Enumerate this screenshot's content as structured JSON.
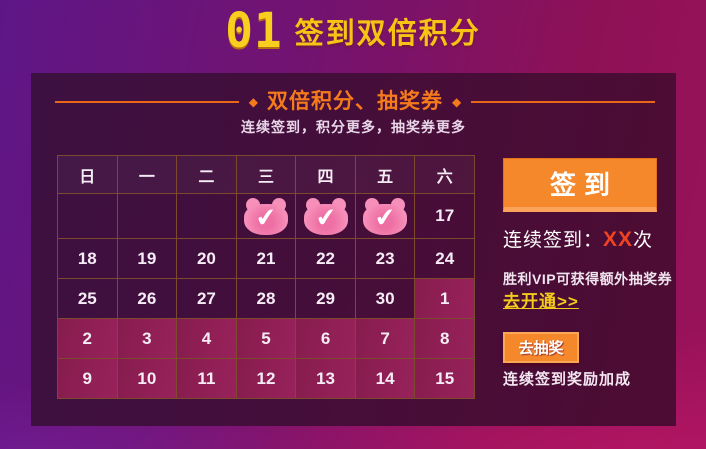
{
  "title": {
    "number": "01",
    "text": "签到双倍积分"
  },
  "section": {
    "bullet": "◆",
    "header": "双倍积分、抽奖券",
    "subtitle": "连续签到，积分更多，抽奖券更多"
  },
  "calendar": {
    "weekdays": [
      "日",
      "一",
      "二",
      "三",
      "四",
      "五",
      "六"
    ],
    "rows": [
      [
        {
          "t": "empty"
        },
        {
          "t": "empty"
        },
        {
          "t": "empty"
        },
        {
          "t": "bear"
        },
        {
          "t": "bear"
        },
        {
          "t": "bear"
        },
        {
          "t": "day",
          "v": "17"
        }
      ],
      [
        {
          "t": "day",
          "v": "18"
        },
        {
          "t": "day",
          "v": "19"
        },
        {
          "t": "day",
          "v": "20"
        },
        {
          "t": "day",
          "v": "21"
        },
        {
          "t": "day",
          "v": "22"
        },
        {
          "t": "day",
          "v": "23"
        },
        {
          "t": "day",
          "v": "24"
        }
      ],
      [
        {
          "t": "day",
          "v": "25"
        },
        {
          "t": "day",
          "v": "26"
        },
        {
          "t": "day",
          "v": "27"
        },
        {
          "t": "day",
          "v": "28"
        },
        {
          "t": "day",
          "v": "29"
        },
        {
          "t": "day",
          "v": "30"
        },
        {
          "t": "day",
          "v": "1",
          "hl": true
        }
      ],
      [
        {
          "t": "day",
          "v": "2",
          "hl": true
        },
        {
          "t": "day",
          "v": "3",
          "hl": true
        },
        {
          "t": "day",
          "v": "4",
          "hl": true
        },
        {
          "t": "day",
          "v": "5",
          "hl": true
        },
        {
          "t": "day",
          "v": "6",
          "hl": true
        },
        {
          "t": "day",
          "v": "7",
          "hl": true
        },
        {
          "t": "day",
          "v": "8",
          "hl": true
        }
      ],
      [
        {
          "t": "day",
          "v": "9",
          "hl": true
        },
        {
          "t": "day",
          "v": "10",
          "hl": true
        },
        {
          "t": "day",
          "v": "11",
          "hl": true
        },
        {
          "t": "day",
          "v": "12",
          "hl": true
        },
        {
          "t": "day",
          "v": "13",
          "hl": true
        },
        {
          "t": "day",
          "v": "14",
          "hl": true
        },
        {
          "t": "day",
          "v": "15",
          "hl": true
        }
      ]
    ]
  },
  "signin": {
    "button_label": "签到",
    "streak_prefix": "连续签到：",
    "streak_count": "XX",
    "streak_suffix": "次",
    "vip_note": "胜利VIP可获得额外抽奖券",
    "vip_link": "去开通>>",
    "lottery_button_label": "去抽奖",
    "lottery_note": "连续签到奖励加成"
  },
  "icons": {
    "check": "✔"
  },
  "colors": {
    "accent_orange": "#f6882c",
    "gold": "#f7c315",
    "link_yellow": "#f2cb1c",
    "line_orange": "#ea6619",
    "highlight_magenta": "#8e1e53",
    "bear_pink": "#f68fb9",
    "streak_red": "#ef4423",
    "panel_purple": "#3c1041"
  }
}
